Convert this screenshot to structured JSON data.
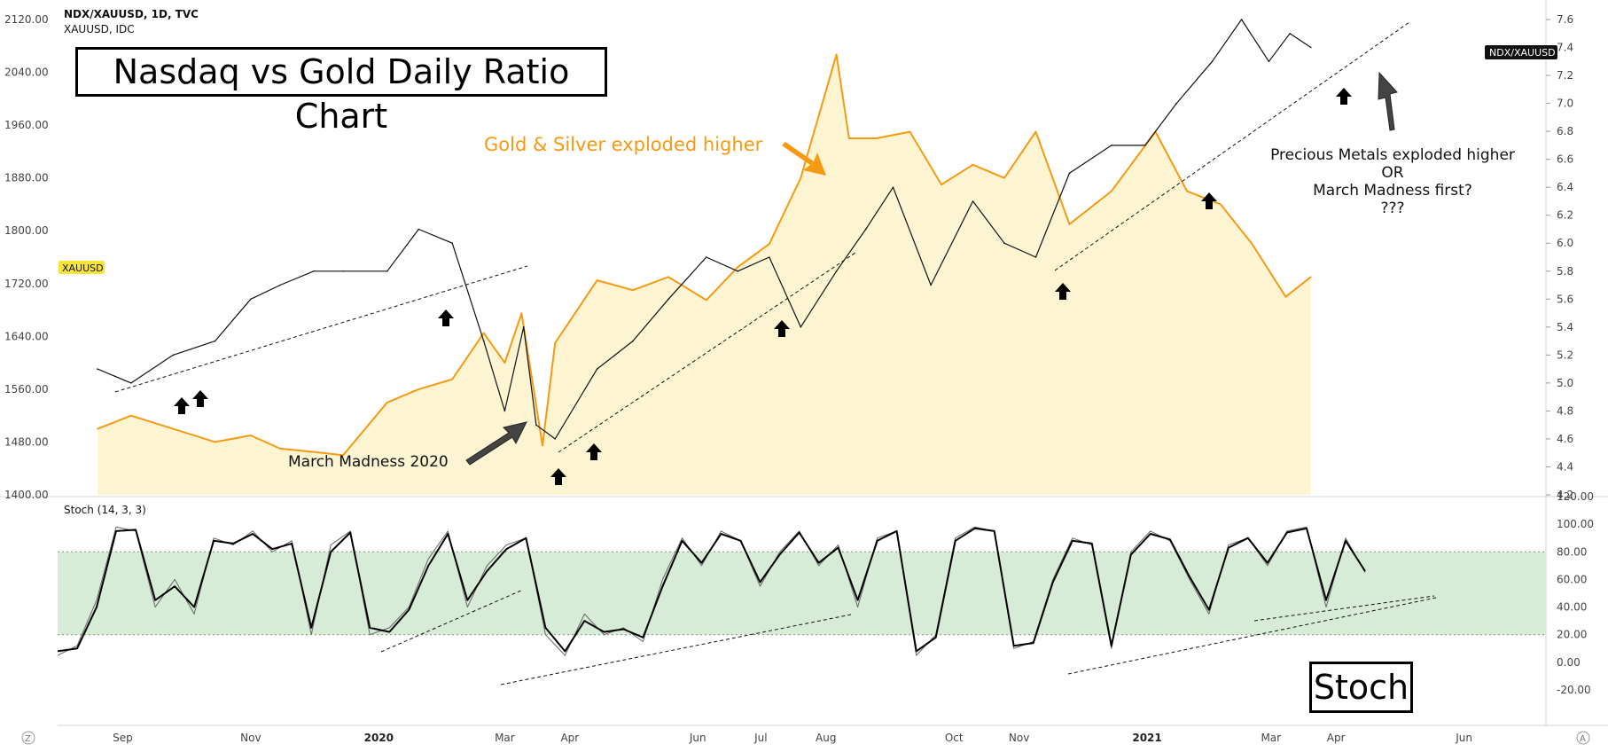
{
  "header": {
    "symbol_line": "NDX/XAUUSD, 1D, TVC",
    "second_symbol": "XAUUSD, IDC"
  },
  "title": "Nasdaq vs Gold Daily Ratio Chart",
  "stoch_box_label": "Stoch",
  "tags": {
    "left": "XAUUSD",
    "right": "NDX/XAUUSD"
  },
  "annotations": {
    "gold_silver": "Gold & Silver exploded higher",
    "march_madness": "March Madness 2020",
    "pm_line1": "Precious Metals exploded higher",
    "pm_line2": "OR",
    "pm_line3": "March Madness first?",
    "pm_line4": "???"
  },
  "colors": {
    "gold_line": "#f59a12",
    "gold_fill": "#fdf5d2",
    "ratio_line": "#111111",
    "stoch_band": "#d6ecd6",
    "tag_left_bg": "#f7e43a",
    "tag_right_bg": "#111111"
  },
  "icons": {
    "up_arrow": "up-arrow-icon",
    "pointer_arrow": "pointer-arrow-icon"
  },
  "chart_data": [
    {
      "type": "line",
      "panel": "price",
      "y_left_ticks": [
        "2120.00",
        "2040.00",
        "1960.00",
        "1880.00",
        "1800.00",
        "1720.00",
        "1640.00",
        "1560.00",
        "1480.00",
        "1400.00"
      ],
      "y_right_ticks": [
        "7.6",
        "7.4",
        "7.2",
        "7.0",
        "6.8",
        "6.6",
        "6.4",
        "6.2",
        "6.0",
        "5.8",
        "5.6",
        "5.4",
        "5.2",
        "5.0",
        "4.8",
        "4.6",
        "4.4",
        "4.2"
      ],
      "ylim_left": [
        1400,
        2120
      ],
      "ylim_right": [
        4.2,
        7.6
      ],
      "x_ticks": [
        "Sep",
        "Nov",
        "2020",
        "Mar",
        "Apr",
        "Jun",
        "Jul",
        "Aug",
        "Oct",
        "Nov",
        "2021",
        "Mar",
        "Apr",
        "Jun"
      ],
      "x_ticks_bold": [
        "2020",
        "2021"
      ],
      "series": [
        {
          "name": "XAUUSD",
          "axis": "left",
          "x": [
            "2019-08-20",
            "2019-09-05",
            "2019-09-25",
            "2019-10-15",
            "2019-11-01",
            "2019-11-15",
            "2019-12-01",
            "2019-12-15",
            "2020-01-05",
            "2020-01-20",
            "2020-02-05",
            "2020-02-20",
            "2020-03-01",
            "2020-03-09",
            "2020-03-19",
            "2020-03-25",
            "2020-04-14",
            "2020-05-01",
            "2020-05-18",
            "2020-06-05",
            "2020-06-20",
            "2020-07-05",
            "2020-07-20",
            "2020-08-06",
            "2020-08-12",
            "2020-08-25",
            "2020-09-10",
            "2020-09-25",
            "2020-10-10",
            "2020-10-25",
            "2020-11-09",
            "2020-11-25",
            "2020-12-15",
            "2021-01-05",
            "2021-01-20",
            "2021-02-05",
            "2021-02-20",
            "2021-03-08",
            "2021-03-20"
          ],
          "values": [
            1500,
            1520,
            1500,
            1480,
            1490,
            1470,
            1465,
            1460,
            1540,
            1560,
            1575,
            1645,
            1600,
            1675,
            1475,
            1630,
            1725,
            1710,
            1730,
            1695,
            1745,
            1780,
            1880,
            2067,
            1940,
            1940,
            1950,
            1870,
            1900,
            1880,
            1950,
            1810,
            1860,
            1950,
            1860,
            1840,
            1780,
            1700,
            1730
          ]
        },
        {
          "name": "NDX/XAUUSD",
          "axis": "right",
          "x": [
            "2019-08-20",
            "2019-09-05",
            "2019-09-25",
            "2019-10-15",
            "2019-11-01",
            "2019-11-15",
            "2019-12-01",
            "2019-12-15",
            "2020-01-05",
            "2020-01-20",
            "2020-02-05",
            "2020-02-20",
            "2020-03-01",
            "2020-03-10",
            "2020-03-16",
            "2020-03-25",
            "2020-04-14",
            "2020-05-01",
            "2020-05-18",
            "2020-06-05",
            "2020-06-20",
            "2020-07-05",
            "2020-07-20",
            "2020-08-06",
            "2020-08-20",
            "2020-09-02",
            "2020-09-20",
            "2020-10-10",
            "2020-10-25",
            "2020-11-09",
            "2020-11-25",
            "2020-12-15",
            "2020-12-31",
            "2021-01-15",
            "2021-02-01",
            "2021-02-15",
            "2021-02-28",
            "2021-03-10",
            "2021-03-20"
          ],
          "values": [
            5.1,
            5.0,
            5.2,
            5.3,
            5.6,
            5.7,
            5.8,
            5.8,
            5.8,
            6.1,
            6.0,
            5.3,
            4.8,
            5.4,
            4.7,
            4.6,
            5.1,
            5.3,
            5.6,
            5.9,
            5.8,
            5.9,
            5.4,
            5.8,
            6.1,
            6.4,
            5.7,
            6.3,
            6.0,
            5.9,
            6.5,
            6.7,
            6.7,
            7.0,
            7.3,
            7.6,
            7.3,
            7.5,
            7.4
          ]
        }
      ],
      "trendlines": 5,
      "signal_arrows": 10
    },
    {
      "type": "line",
      "panel": "stochastic",
      "label": "Stoch (14, 3, 3)",
      "y_ticks": [
        "120.00",
        "100.00",
        "80.00",
        "60.00",
        "40.00",
        "20.00",
        "0.00",
        "-20.00"
      ],
      "ylim": [
        -20,
        120
      ],
      "band": [
        20,
        80
      ],
      "series": [
        {
          "name": "%K",
          "values": [
            5,
            12,
            45,
            98,
            95,
            40,
            60,
            35,
            90,
            85,
            95,
            80,
            88,
            20,
            85,
            95,
            20,
            25,
            40,
            75,
            95,
            40,
            70,
            85,
            90,
            20,
            5,
            35,
            20,
            25,
            15,
            60,
            90,
            70,
            95,
            88,
            55,
            80,
            95,
            70,
            85,
            40,
            90,
            95,
            5,
            20,
            90,
            98,
            95,
            10,
            15,
            60,
            90,
            85,
            10,
            80,
            95,
            88,
            60,
            35,
            85,
            90,
            70,
            95,
            98,
            40,
            90,
            65
          ]
        },
        {
          "name": "%D",
          "values": [
            8,
            10,
            40,
            95,
            96,
            45,
            55,
            40,
            88,
            86,
            93,
            82,
            86,
            25,
            80,
            94,
            25,
            22,
            38,
            70,
            93,
            45,
            66,
            82,
            90,
            25,
            8,
            30,
            22,
            24,
            18,
            55,
            88,
            72,
            93,
            88,
            58,
            78,
            94,
            72,
            83,
            45,
            88,
            95,
            8,
            18,
            88,
            97,
            95,
            12,
            14,
            58,
            88,
            86,
            12,
            78,
            93,
            89,
            62,
            38,
            83,
            90,
            72,
            94,
            97,
            45,
            88,
            66
          ]
        }
      ],
      "trendlines": 4
    }
  ]
}
